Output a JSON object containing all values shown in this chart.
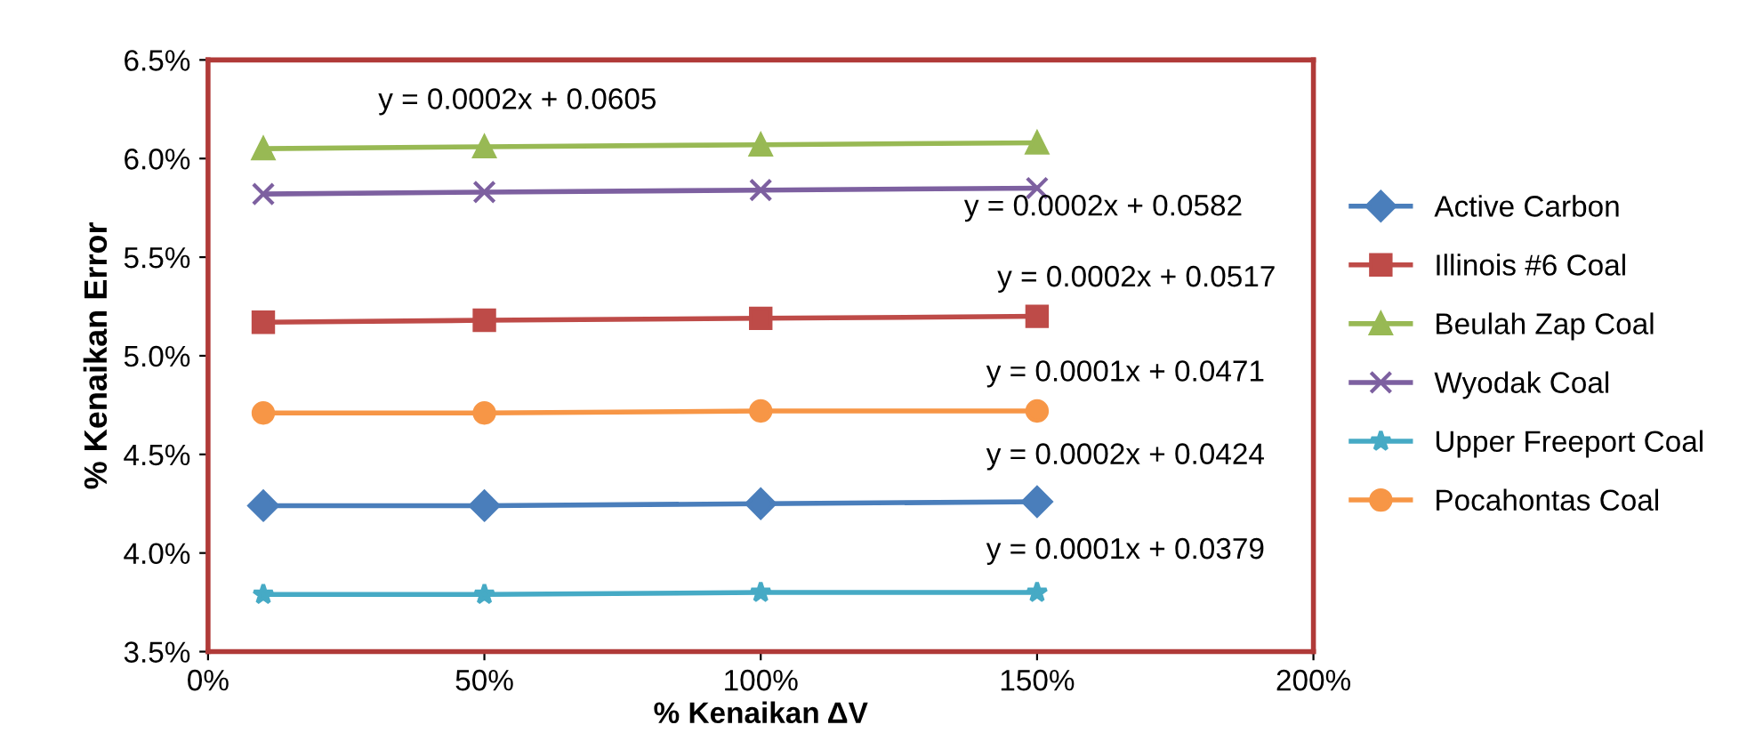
{
  "chart_data": {
    "type": "line",
    "xlabel": "% Kenaikan ΔV",
    "ylabel": "% Kenaikan Error",
    "xlim": [
      0,
      200
    ],
    "xticks": [
      {
        "value": 0,
        "label": "0%"
      },
      {
        "value": 50,
        "label": "50%"
      },
      {
        "value": 100,
        "label": "100%"
      },
      {
        "value": 150,
        "label": "150%"
      },
      {
        "value": 200,
        "label": "200%"
      }
    ],
    "ylim": [
      3.5,
      6.5
    ],
    "yticks": [
      {
        "value": 3.5,
        "label": "3.5%"
      },
      {
        "value": 4.0,
        "label": "4.0%"
      },
      {
        "value": 4.5,
        "label": "4.5%"
      },
      {
        "value": 5.0,
        "label": "5.0%"
      },
      {
        "value": 5.5,
        "label": "5.5%"
      },
      {
        "value": 6.0,
        "label": "6.0%"
      },
      {
        "value": 6.5,
        "label": "6.5%"
      }
    ],
    "grid": false,
    "legend": "right",
    "line_style": "solid",
    "series": [
      {
        "name": "Active Carbon",
        "color": "#4a7ebb",
        "marker": "diamond",
        "x": [
          10,
          50,
          100,
          150
        ],
        "values": [
          4.24,
          4.24,
          4.25,
          4.26
        ]
      },
      {
        "name": "Illinois #6 Coal",
        "color": "#be4b48",
        "marker": "square",
        "x": [
          10,
          50,
          100,
          150
        ],
        "values": [
          5.17,
          5.18,
          5.19,
          5.2
        ]
      },
      {
        "name": "Beulah Zap Coal",
        "color": "#98b954",
        "marker": "triangle",
        "x": [
          10,
          50,
          100,
          150
        ],
        "values": [
          6.05,
          6.06,
          6.07,
          6.08
        ]
      },
      {
        "name": "Wyodak Coal",
        "color": "#7d60a0",
        "marker": "cross",
        "x": [
          10,
          50,
          100,
          150
        ],
        "values": [
          5.82,
          5.83,
          5.84,
          5.85
        ]
      },
      {
        "name": "Upper Freeport Coal",
        "color": "#46aac5",
        "marker": "star",
        "x": [
          10,
          50,
          100,
          150
        ],
        "values": [
          3.79,
          3.79,
          3.8,
          3.8
        ]
      },
      {
        "name": "Pocahontas Coal",
        "color": "#f79646",
        "marker": "circle",
        "x": [
          10,
          50,
          100,
          150
        ],
        "values": [
          4.71,
          4.71,
          4.72,
          4.72
        ]
      }
    ],
    "annotations": [
      "y = 0.0002x + 0.0605",
      "y = 0.0002x + 0.0582",
      "y = 0.0002x + 0.0517",
      "y = 0.0001x + 0.0471",
      "y = 0.0002x + 0.0424",
      "y = 0.0001x + 0.0379"
    ]
  }
}
